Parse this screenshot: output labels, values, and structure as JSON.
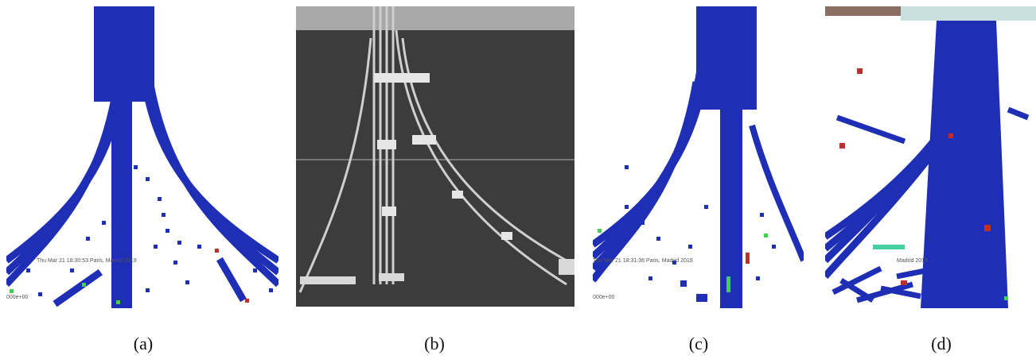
{
  "figure": {
    "panels": [
      {
        "id": "a",
        "caption": "(a)",
        "kind": "simulation",
        "overlay_text": "Thu Mar 21 18:30:53 Paris, Madrid 2019",
        "corner_text": "000e+00"
      },
      {
        "id": "b",
        "caption": "(b)",
        "kind": "experiment-photo"
      },
      {
        "id": "c",
        "caption": "(c)",
        "kind": "simulation",
        "overlay_text": "Thu Mar 21 18:31:36 Paris, Madrid 2019",
        "corner_text": "000e+00"
      },
      {
        "id": "d",
        "caption": "(d)",
        "kind": "simulation",
        "overlay_text": "Madrid 2019"
      }
    ],
    "colors": {
      "fiber_blue": "#1f2fb5",
      "fiber_edge": "#0c1680",
      "debris_red": "#c0302a",
      "debris_green": "#44d04a",
      "photo_bg": "#3c3c3c",
      "photo_fiber": "#cfcfcf"
    }
  }
}
